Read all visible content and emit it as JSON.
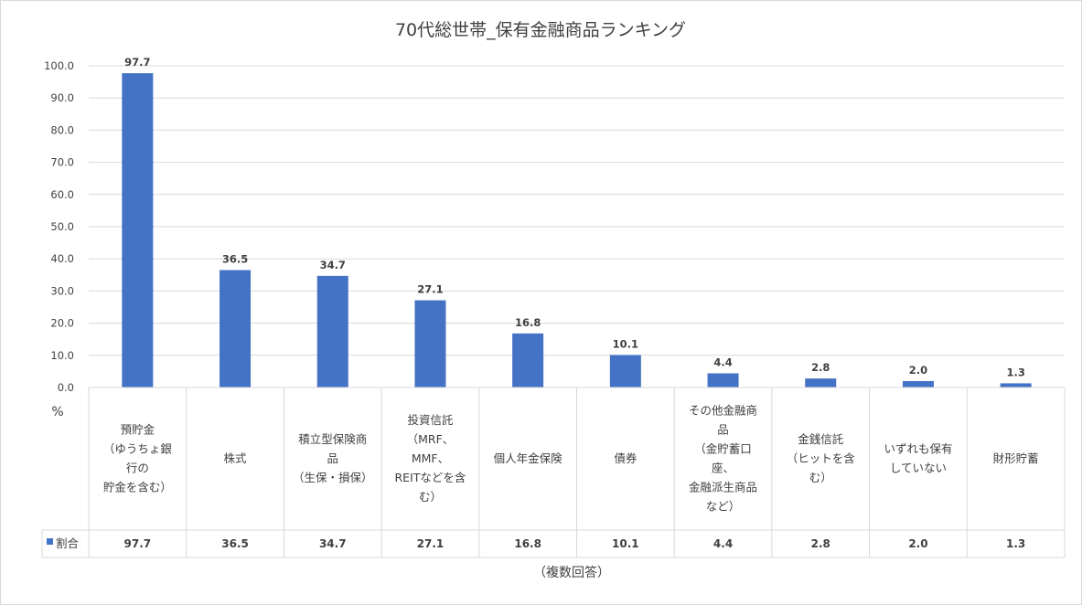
{
  "chart_data": {
    "type": "bar",
    "title": "70代総世帯_保有金融商品ランキング",
    "ylabel": "%",
    "xlabel": "（複数回答）",
    "ylim": [
      0,
      100
    ],
    "yticks": [
      "0.0",
      "10.0",
      "20.0",
      "30.0",
      "40.0",
      "50.0",
      "60.0",
      "70.0",
      "80.0",
      "90.0",
      "100.0"
    ],
    "grid": true,
    "legend_position": "table-left",
    "bar_color": "#4472C4",
    "categories": [
      [
        "預貯金",
        "（ゆうちょ銀",
        "行の",
        "貯金を含む）"
      ],
      [
        "株式"
      ],
      [
        "積立型保険商",
        "品",
        "（生保・損保）"
      ],
      [
        "投資信託",
        "（MRF、",
        "MMF、",
        "REITなどを含",
        "む）"
      ],
      [
        "個人年金保険"
      ],
      [
        "債券"
      ],
      [
        "その他金融商",
        "品",
        "（金貯蓄口",
        "座、",
        "金融派生商品",
        "など）"
      ],
      [
        "金銭信託",
        "（ヒットを含",
        "む）"
      ],
      [
        "いずれも保有",
        "していない"
      ],
      [
        "財形貯蓄"
      ]
    ],
    "series": [
      {
        "name": "割合",
        "values": [
          97.7,
          36.5,
          34.7,
          27.1,
          16.8,
          10.1,
          4.4,
          2.8,
          2.0,
          1.3
        ],
        "labels": [
          "97.7",
          "36.5",
          "34.7",
          "27.1",
          "16.8",
          "10.1",
          "4.4",
          "2.8",
          "2.0",
          "1.3"
        ]
      }
    ]
  }
}
